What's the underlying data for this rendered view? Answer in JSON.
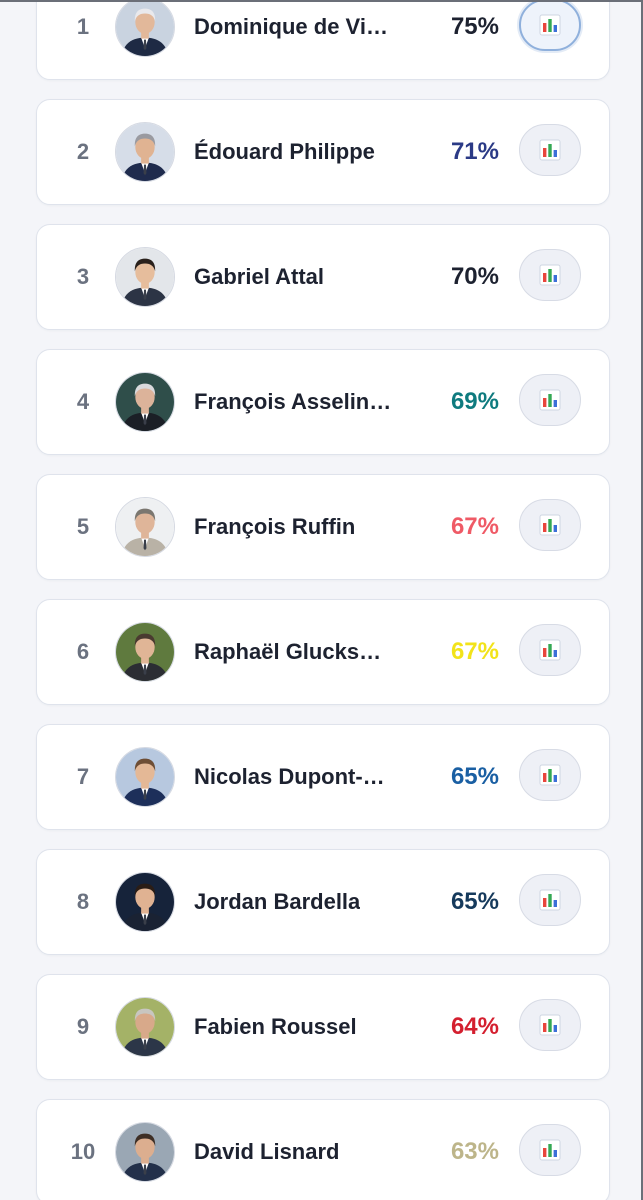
{
  "leaderboard": {
    "items": [
      {
        "rank": "1",
        "name": "Dominique de Vi…",
        "score": "75%",
        "score_color": "#1d2230",
        "active": true,
        "avatar": {
          "bg": "#c9d3e0",
          "skin": "#e2b89a",
          "hair": "#e9e9ec",
          "suit": "#1e2a44"
        }
      },
      {
        "rank": "2",
        "name": "Édouard Philippe",
        "score": "71%",
        "score_color": "#2b3a86",
        "active": false,
        "avatar": {
          "bg": "#d6dde8",
          "skin": "#e0b392",
          "hair": "#9a9aa0",
          "suit": "#1f2b4d"
        }
      },
      {
        "rank": "3",
        "name": "Gabriel Attal",
        "score": "70%",
        "score_color": "#1d2230",
        "active": false,
        "avatar": {
          "bg": "#e3e6ea",
          "skin": "#e6bd9c",
          "hair": "#2a211c",
          "suit": "#2c3445"
        }
      },
      {
        "rank": "4",
        "name": "François Asselin…",
        "score": "69%",
        "score_color": "#0f7b7f",
        "active": false,
        "avatar": {
          "bg": "#2f4e4a",
          "skin": "#dcb39a",
          "hair": "#d9d9dc",
          "suit": "#1b1f26"
        }
      },
      {
        "rank": "5",
        "name": "François Ruffin",
        "score": "67%",
        "score_color": "#ef5a66",
        "active": false,
        "avatar": {
          "bg": "#eef0f2",
          "skin": "#dfb599",
          "hair": "#7b7770",
          "suit": "#b9b2a6"
        }
      },
      {
        "rank": "6",
        "name": "Raphaël Glucks…",
        "score": "67%",
        "score_color": "#f2e31a",
        "active": false,
        "avatar": {
          "bg": "#5f7a3e",
          "skin": "#e0b596",
          "hair": "#4a3a30",
          "suit": "#2b2d33"
        }
      },
      {
        "rank": "7",
        "name": "Nicolas Dupont-…",
        "score": "65%",
        "score_color": "#1a5fa3",
        "active": false,
        "avatar": {
          "bg": "#b7c8df",
          "skin": "#e4b896",
          "hair": "#6e4e35",
          "suit": "#1d2f5a"
        }
      },
      {
        "rank": "8",
        "name": "Jordan Bardella",
        "score": "65%",
        "score_color": "#163a5c",
        "active": false,
        "avatar": {
          "bg": "#16233a",
          "skin": "#e0b292",
          "hair": "#2a1d16",
          "suit": "#1a2233"
        }
      },
      {
        "rank": "9",
        "name": "Fabien Roussel",
        "score": "64%",
        "score_color": "#d41f2f",
        "active": false,
        "avatar": {
          "bg": "#a4b267",
          "skin": "#d8a98a",
          "hair": "#c8c6c0",
          "suit": "#2c3648"
        }
      },
      {
        "rank": "10",
        "name": "David Lisnard",
        "score": "63%",
        "score_color": "#bdb58a",
        "active": false,
        "avatar": {
          "bg": "#9aa7b4",
          "skin": "#dcae8f",
          "hair": "#3e2f26",
          "suit": "#23304a"
        }
      }
    ]
  },
  "icons": {
    "stats": "bar-chart-icon"
  },
  "colors": {
    "page_bg": "#f4f5f9",
    "card_bg": "#ffffff",
    "rank_text": "#6b7280",
    "name_text": "#1d2230",
    "bar_red": "#e8453c",
    "bar_green": "#34a853",
    "bar_blue": "#3b6fd8"
  }
}
